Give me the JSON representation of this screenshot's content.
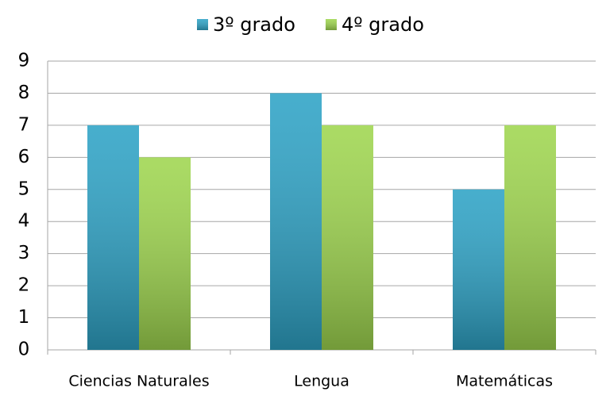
{
  "chart_data": {
    "type": "bar",
    "categories": [
      "Ciencias Naturales",
      "Lengua",
      "Matemáticas"
    ],
    "series": [
      {
        "name": "3º grado",
        "color": "#2ea3c6",
        "values": [
          7,
          8,
          5
        ]
      },
      {
        "name": "4º grado",
        "color": "#9fd64f",
        "values": [
          6,
          7,
          7
        ]
      }
    ],
    "ylim": [
      0,
      9
    ],
    "yticks": [
      0,
      1,
      2,
      3,
      4,
      5,
      6,
      7,
      8,
      9
    ],
    "grid": true,
    "legend": "top"
  }
}
